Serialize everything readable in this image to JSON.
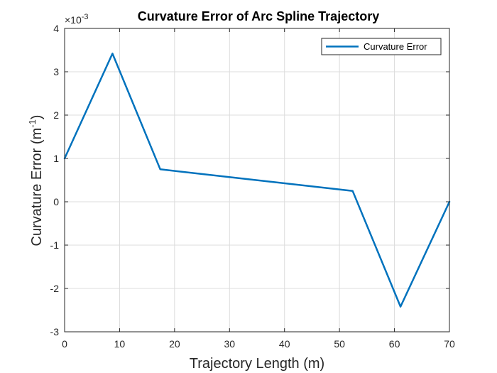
{
  "chart_data": {
    "type": "line",
    "title": "Curvature Error of Arc Spline Trajectory",
    "xlabel": "Trajectory Length (m)",
    "ylabel_main": "Curvature Error (m",
    "ylabel_sup": "-1",
    "ylabel_close": ")",
    "y_exponent_prefix": "×10",
    "y_exponent_power": "-3",
    "xlim": [
      0,
      70
    ],
    "ylim": [
      -3,
      4
    ],
    "xticks": [
      0,
      10,
      20,
      30,
      40,
      50,
      60,
      70
    ],
    "yticks": [
      -3,
      -2,
      -1,
      0,
      1,
      2,
      3,
      4
    ],
    "xtick_labels": [
      "0",
      "10",
      "20",
      "30",
      "40",
      "50",
      "60",
      "70"
    ],
    "ytick_labels": [
      "-3",
      "-2",
      "-1",
      "0",
      "1",
      "2",
      "3",
      "4"
    ],
    "grid": true,
    "legend_position": "top-right",
    "series": [
      {
        "name": "Curvature Error",
        "color": "#0072BD",
        "x": [
          0,
          8.7,
          17.4,
          52.4,
          61.1,
          70
        ],
        "y": [
          1.0,
          3.42,
          0.75,
          0.25,
          -2.42,
          0.0
        ]
      }
    ]
  }
}
